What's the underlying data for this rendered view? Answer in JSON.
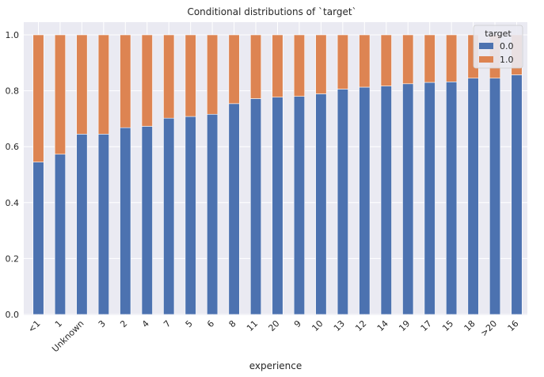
{
  "chart_data": {
    "type": "bar",
    "stacked": true,
    "title": "Conditional distributions of `target`",
    "xlabel": "experience",
    "ylabel": "",
    "ylim": [
      0,
      1.0
    ],
    "yticks": [
      "0.0",
      "0.2",
      "0.4",
      "0.6",
      "0.8",
      "1.0"
    ],
    "grid": true,
    "legend_position": "top-right",
    "legend_title": "target",
    "categories": [
      "<1",
      "1",
      "Unknown",
      "3",
      "2",
      "4",
      "7",
      "5",
      "6",
      "8",
      "11",
      "20",
      "9",
      "10",
      "13",
      "12",
      "14",
      "19",
      "17",
      "15",
      "18",
      ">20",
      "16"
    ],
    "series": [
      {
        "name": "0.0",
        "color": "#4c72b0",
        "values": [
          0.545,
          0.573,
          0.645,
          0.645,
          0.668,
          0.673,
          0.702,
          0.708,
          0.716,
          0.754,
          0.772,
          0.777,
          0.78,
          0.789,
          0.806,
          0.813,
          0.817,
          0.825,
          0.83,
          0.832,
          0.845,
          0.845,
          0.857
        ]
      },
      {
        "name": "1.0",
        "color": "#dd8452",
        "values": [
          0.455,
          0.427,
          0.355,
          0.355,
          0.332,
          0.327,
          0.298,
          0.292,
          0.284,
          0.246,
          0.228,
          0.223,
          0.22,
          0.211,
          0.194,
          0.187,
          0.183,
          0.175,
          0.17,
          0.168,
          0.155,
          0.155,
          0.143
        ]
      }
    ],
    "colors": {
      "background": "#eaeaf2",
      "grid": "#ffffff"
    }
  }
}
